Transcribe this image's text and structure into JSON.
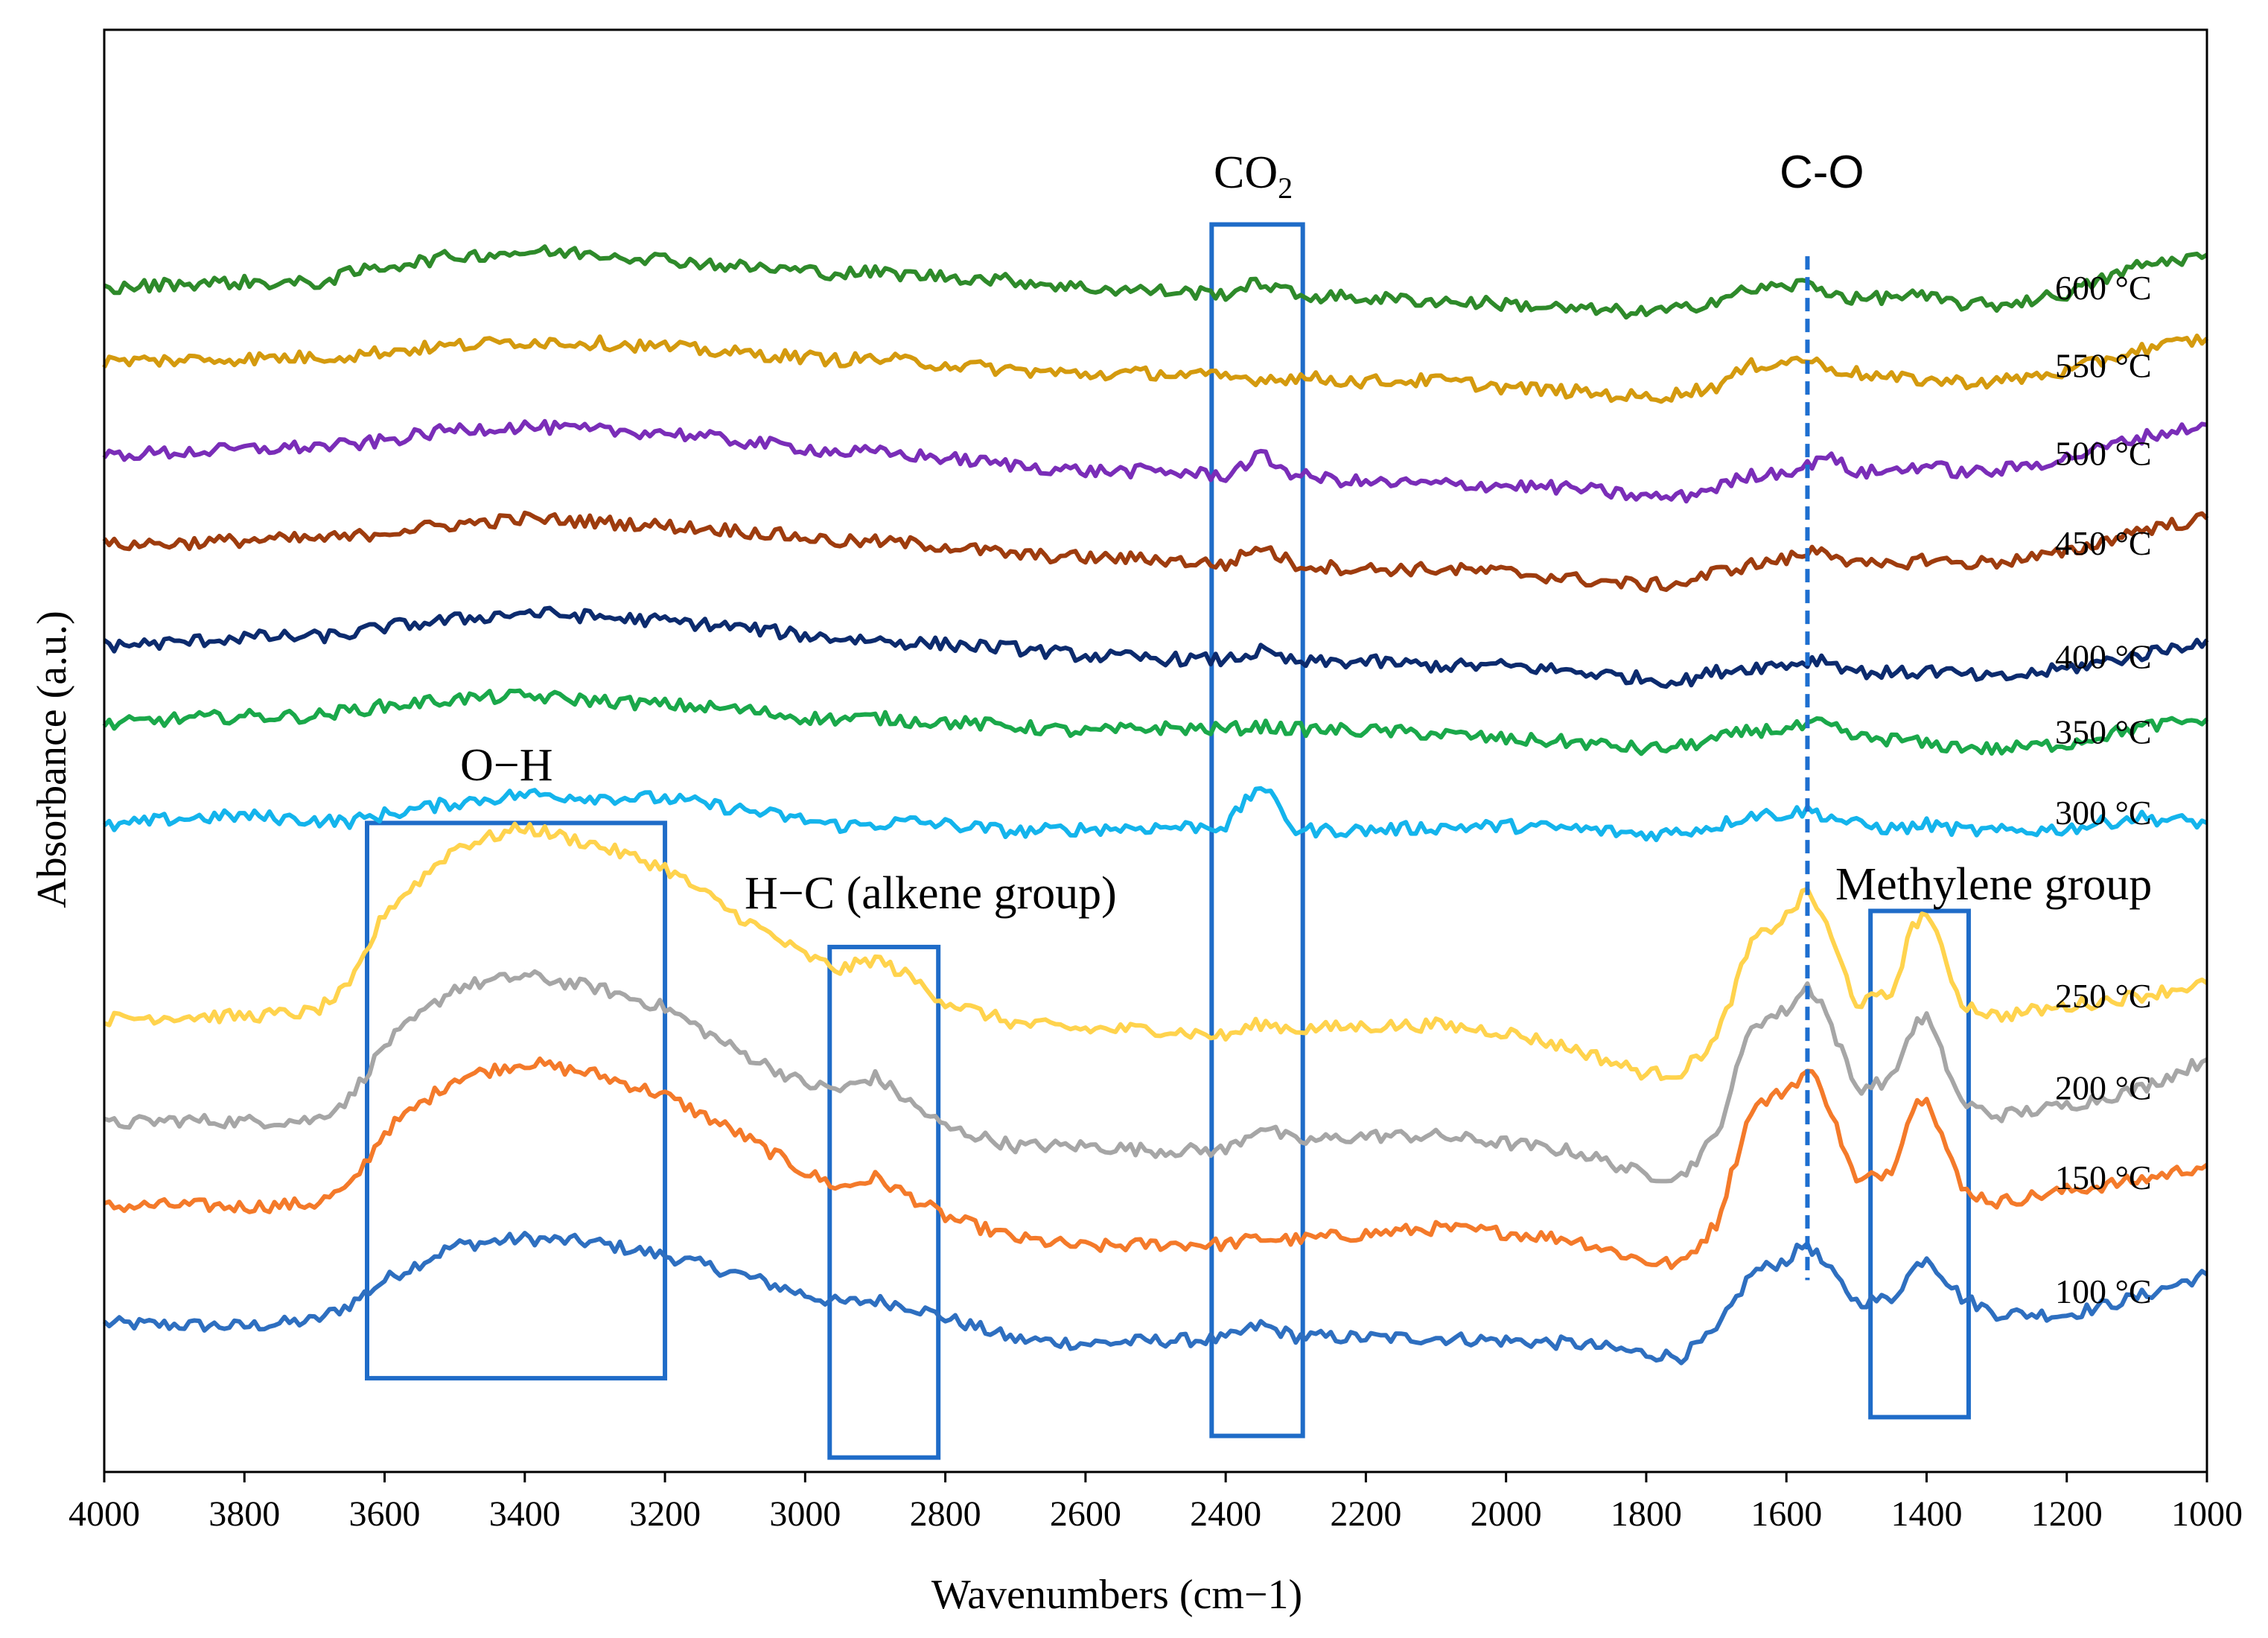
{
  "chart_data": {
    "type": "line",
    "title": "",
    "xlabel": "Wavenumbers (cm−1)",
    "ylabel": "Absorbance (a.u.)",
    "xlim": [
      4000,
      1000
    ],
    "x_reversed": true,
    "ylim": [
      0,
      100
    ],
    "y_units": "stacked offset scale (no numeric y ticks shown)",
    "grid": false,
    "x_ticks": [
      "4000",
      "3800",
      "3600",
      "3400",
      "3200",
      "3000",
      "2800",
      "2600",
      "2400",
      "2200",
      "2000",
      "1800",
      "1600",
      "1400",
      "1200",
      "1000"
    ],
    "x": [
      4000,
      3900,
      3800,
      3700,
      3650,
      3600,
      3500,
      3400,
      3300,
      3200,
      3100,
      3000,
      2950,
      2900,
      2850,
      2800,
      2700,
      2600,
      2500,
      2400,
      2350,
      2300,
      2200,
      2100,
      2000,
      1900,
      1800,
      1750,
      1700,
      1650,
      1600,
      1570,
      1550,
      1500,
      1450,
      1420,
      1400,
      1350,
      1300,
      1200,
      1100,
      1000
    ],
    "series": [
      {
        "name": "100 °C",
        "label": "100 °C",
        "color": "#2e6fc0",
        "values": [
          10.3,
          10.2,
          10.1,
          10.5,
          11.6,
          13.3,
          15.7,
          16.2,
          15.9,
          15.0,
          13.8,
          12.3,
          11.7,
          11.9,
          11.5,
          10.7,
          9.2,
          8.9,
          9.1,
          9.2,
          10.2,
          9.4,
          9.3,
          9.3,
          9.1,
          8.9,
          8.2,
          8.0,
          9.7,
          13.8,
          14.7,
          15.9,
          14.6,
          11.8,
          12.0,
          14.0,
          15.0,
          12.1,
          11.0,
          10.9,
          12.1,
          13.7
        ]
      },
      {
        "name": "150 °C",
        "label": "150 °C",
        "color": "#f47a2a",
        "values": [
          18.4,
          18.5,
          18.4,
          18.6,
          19.7,
          23.6,
          27.3,
          28.4,
          27.6,
          26.1,
          23.6,
          20.8,
          19.7,
          20.4,
          19.1,
          17.7,
          16.2,
          15.6,
          15.8,
          15.8,
          16.2,
          16.1,
          16.5,
          16.9,
          16.6,
          16.1,
          14.6,
          14.4,
          17.2,
          25.2,
          26.5,
          27.8,
          26.8,
          20.0,
          21.0,
          25.2,
          26.3,
          19.6,
          18.7,
          19.5,
          20.2,
          21.3
        ]
      },
      {
        "name": "200 °C",
        "label": "200 °C",
        "color": "#a6a6a6",
        "values": [
          24.1,
          24.4,
          24.3,
          24.4,
          25.9,
          29.6,
          33.6,
          34.4,
          33.6,
          32.2,
          29.3,
          26.9,
          26.5,
          27.4,
          25.6,
          23.9,
          22.6,
          22.6,
          22.3,
          22.3,
          24.0,
          22.9,
          23.3,
          23.3,
          22.8,
          22.2,
          20.6,
          20.5,
          23.3,
          31.0,
          32.0,
          33.7,
          32.6,
          26.6,
          27.2,
          30.8,
          31.6,
          25.6,
          24.7,
          25.4,
          26.5,
          28.6
        ]
      },
      {
        "name": "250 °C",
        "label": "250 °C",
        "color": "#ffd34d",
        "values": [
          31.4,
          31.6,
          31.6,
          31.9,
          33.6,
          38.8,
          43.3,
          44.7,
          43.5,
          41.9,
          38.7,
          35.8,
          34.8,
          35.6,
          34.3,
          32.6,
          31.1,
          30.7,
          30.7,
          30.2,
          31.1,
          30.7,
          30.9,
          31.0,
          30.5,
          29.3,
          27.6,
          27.7,
          30.0,
          36.7,
          38.5,
          40.3,
          38.7,
          32.5,
          33.1,
          37.8,
          38.9,
          32.5,
          31.6,
          32.3,
          33.0,
          33.9
        ]
      },
      {
        "name": "300 °C",
        "label": "300 °C",
        "color": "#14b4ec",
        "values": [
          44.7,
          45.3,
          45.5,
          45.2,
          45.1,
          45.6,
          46.4,
          47.0,
          46.8,
          46.7,
          46.0,
          45.2,
          44.8,
          44.9,
          45.1,
          44.9,
          44.4,
          44.6,
          44.7,
          44.8,
          47.7,
          44.5,
          44.5,
          44.7,
          44.8,
          44.6,
          44.2,
          44.4,
          44.8,
          45.6,
          45.6,
          45.9,
          45.6,
          44.9,
          44.6,
          44.7,
          44.9,
          44.5,
          44.4,
          44.6,
          45.4,
          45.0
        ]
      },
      {
        "name": "350 °C",
        "label": "350 °C",
        "color": "#1aa84a",
        "values": [
          51.8,
          52.2,
          52.4,
          52.4,
          52.8,
          53.1,
          53.6,
          53.8,
          53.5,
          53.2,
          52.9,
          52.3,
          52.2,
          52.3,
          52.1,
          52.0,
          51.7,
          51.3,
          51.6,
          51.5,
          51.7,
          51.5,
          51.4,
          51.2,
          50.8,
          50.6,
          50.1,
          50.3,
          50.8,
          51.4,
          51.5,
          51.7,
          51.9,
          50.9,
          50.8,
          50.7,
          50.4,
          50.3,
          50.1,
          50.5,
          51.6,
          52.2
        ]
      },
      {
        "name": "400 °C",
        "label": "400 °C",
        "color": "#0c2b6e",
        "values": [
          57.3,
          57.5,
          57.9,
          57.9,
          58.1,
          58.6,
          59.1,
          59.6,
          59.3,
          59.0,
          58.6,
          58.0,
          57.8,
          57.7,
          57.5,
          57.4,
          57.1,
          56.6,
          56.4,
          56.3,
          56.9,
          56.1,
          56.2,
          55.9,
          55.9,
          55.5,
          55.0,
          54.8,
          55.5,
          55.8,
          56.0,
          56.2,
          56.4,
          55.5,
          55.4,
          55.4,
          55.6,
          55.3,
          55.0,
          55.7,
          56.6,
          57.7
        ]
      },
      {
        "name": "450 °C",
        "label": "450 °C",
        "color": "#9e3c0e",
        "values": [
          64.3,
          64.4,
          64.6,
          64.7,
          64.8,
          65.2,
          65.7,
          66.1,
          65.9,
          65.6,
          65.3,
          64.8,
          64.5,
          64.5,
          64.4,
          64.2,
          63.6,
          63.4,
          63.3,
          62.9,
          64.2,
          62.9,
          62.6,
          62.6,
          62.4,
          61.9,
          61.5,
          61.6,
          62.4,
          62.9,
          63.3,
          63.7,
          64.1,
          62.9,
          62.8,
          63.2,
          63.3,
          63.0,
          63.1,
          63.7,
          65.3,
          66.1
        ]
      },
      {
        "name": "500 °C",
        "label": "500 °C",
        "color": "#7a2db8",
        "values": [
          70.5,
          70.7,
          70.9,
          71.1,
          71.2,
          71.5,
          72.3,
          72.5,
          72.2,
          72.1,
          71.5,
          71.0,
          70.7,
          70.7,
          70.5,
          70.3,
          69.8,
          69.4,
          69.4,
          69.1,
          70.5,
          69.1,
          68.6,
          68.5,
          68.4,
          68.2,
          67.6,
          67.6,
          68.3,
          69.1,
          69.4,
          69.7,
          70.6,
          69.3,
          69.4,
          69.7,
          69.8,
          69.3,
          69.4,
          70.3,
          71.7,
          72.6
        ]
      },
      {
        "name": "550 °C",
        "label": "550 °C",
        "color": "#d49a0e",
        "values": [
          77.0,
          77.1,
          77.2,
          77.3,
          77.4,
          77.7,
          78.1,
          78.4,
          78.3,
          78.0,
          77.6,
          77.3,
          77.1,
          77.2,
          77.0,
          76.8,
          76.4,
          76.1,
          76.2,
          75.9,
          75.8,
          75.9,
          75.6,
          75.7,
          75.2,
          74.9,
          74.5,
          74.8,
          75.3,
          76.7,
          77.0,
          77.2,
          76.7,
          76.2,
          75.8,
          75.8,
          75.7,
          75.6,
          75.6,
          76.3,
          77.8,
          78.6
        ]
      },
      {
        "name": "600 °C",
        "label": "600 °C",
        "color": "#2e8a2a",
        "values": [
          82.0,
          82.4,
          82.5,
          82.4,
          83.1,
          83.6,
          84.3,
          84.6,
          84.5,
          84.1,
          83.6,
          83.3,
          83.1,
          83.2,
          83.0,
          82.9,
          82.6,
          82.1,
          81.9,
          81.7,
          82.5,
          81.6,
          81.4,
          81.2,
          81.0,
          80.6,
          80.4,
          80.6,
          81.3,
          82.0,
          82.2,
          82.4,
          82.0,
          81.3,
          81.5,
          81.6,
          81.4,
          81.0,
          80.9,
          81.7,
          83.6,
          84.4
        ]
      }
    ],
    "annotations": {
      "co2": {
        "label": "CO",
        "subscript": "2",
        "x_range": [
          2420,
          2290
        ],
        "y_range": [
          2.5,
          86.5
        ]
      },
      "c_o": {
        "label": "C-O",
        "x": 1570,
        "y_range": [
          13.3,
          84.3
        ]
      },
      "o_h": {
        "label": "O−H",
        "x_range": [
          3625,
          3200
        ],
        "y_range": [
          6.5,
          45.0
        ]
      },
      "h_c": {
        "label": "H−C (alkene group)",
        "x_range": [
          2965,
          2810
        ],
        "y_range": [
          1.0,
          36.4
        ]
      },
      "methylene": {
        "label": "Methylene group",
        "x_range": [
          1480,
          1340
        ],
        "y_range": [
          3.8,
          38.9
        ]
      }
    }
  }
}
